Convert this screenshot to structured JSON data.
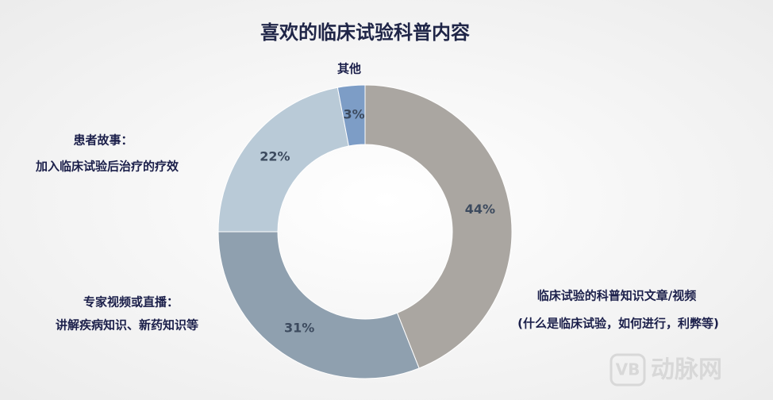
{
  "chart_data": {
    "type": "donut",
    "title": "喜欢的临床试验科普内容",
    "categories": [
      [
        "临床试验的科普知识文章/视频",
        "(什么是临床试验，如何进行，利弊等)"
      ],
      [
        "专家视频或直播：",
        "讲解疾病知识、新药知识等"
      ],
      [
        "患者故事：",
        "加入临床试验后治疗的疗效"
      ],
      [
        "其他"
      ]
    ],
    "values": [
      44,
      31,
      22,
      3
    ],
    "value_labels": [
      "44%",
      "31%",
      "22%",
      "3%"
    ],
    "colors": [
      "#aaa6a1",
      "#8fa0af",
      "#b9cad7",
      "#7d9dc6"
    ]
  },
  "watermark": {
    "logo": "VB",
    "text": "动脉网"
  }
}
